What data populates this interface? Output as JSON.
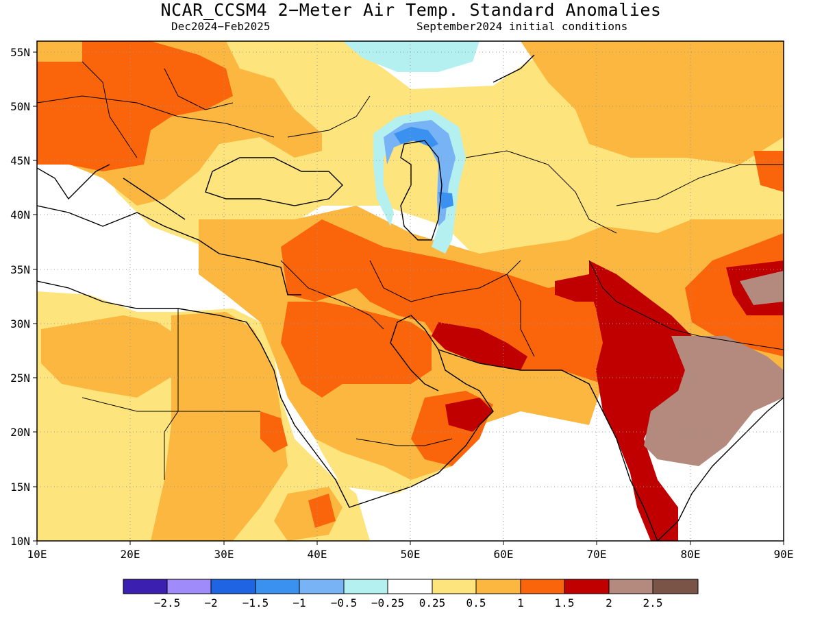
{
  "title": "NCAR_CCSM4 2−Meter Air Temp. Standard Anomalies",
  "subtitle_left": "Dec2024−Feb2025",
  "subtitle_right": "September2024 initial conditions",
  "map": {
    "lon_range": [
      10,
      90
    ],
    "lat_range": [
      10,
      56
    ],
    "lat_ticks": [
      "55N",
      "50N",
      "45N",
      "40N",
      "35N",
      "30N",
      "25N",
      "20N",
      "15N",
      "10N"
    ],
    "lon_ticks": [
      "10E",
      "20E",
      "30E",
      "40E",
      "50E",
      "60E",
      "70E",
      "80E",
      "90E"
    ],
    "gridlines": "dotted"
  },
  "colorbar": {
    "colors": [
      "#3a1fb0",
      "#9f8bfa",
      "#1e64e3",
      "#3a91f0",
      "#78b4f5",
      "#b4f0f0",
      "#ffffff",
      "#fde47c",
      "#fbb73f",
      "#fa650b",
      "#c00000",
      "#b48a7e",
      "#7a5447"
    ],
    "labels": [
      "−2.5",
      "−2",
      "−1.5",
      "−1",
      "−0.5",
      "−0.25",
      "0.25",
      "0.5",
      "1",
      "1.5",
      "2",
      "2.5"
    ]
  },
  "anomaly_regions": [
    {
      "level": "0.5",
      "color": "#fde47c"
    },
    {
      "level": "1",
      "color": "#fbb73f"
    },
    {
      "level": "1.5",
      "color": "#fa650b"
    },
    {
      "level": "2",
      "color": "#c00000"
    },
    {
      "level": "2.5",
      "color": "#b48a7e"
    },
    {
      "level": "-0.25",
      "color": "#b4f0f0"
    },
    {
      "level": "-0.5",
      "color": "#78b4f5"
    },
    {
      "level": "-1",
      "color": "#3a91f0"
    }
  ]
}
